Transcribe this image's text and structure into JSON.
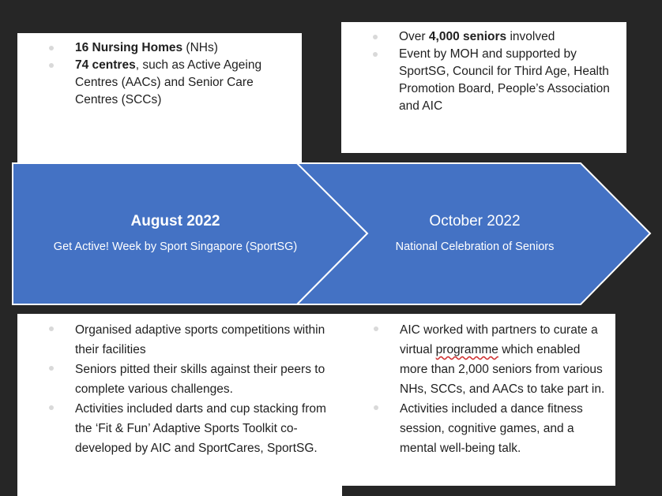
{
  "colors": {
    "background": "#262626",
    "arrow_fill": "#4472c4",
    "arrow_stroke": "#ffffff",
    "box": "#ffffff"
  },
  "top_left": {
    "items": [
      {
        "bold": "16 Nursing Homes",
        "rest": " (NHs)"
      },
      {
        "bold": "74 centres",
        "rest": ", such as Active Ageing Centres (AACs) and Senior Care Centres (SCCs)"
      }
    ]
  },
  "top_right": {
    "items": [
      {
        "pre": "Over ",
        "bold": "4,000 seniors",
        "rest": " involved"
      },
      {
        "pre": "",
        "bold": "",
        "rest": "Event by MOH and supported by SportSG, Council for Third Age, Health Promotion Board, People’s Association and AIC"
      }
    ]
  },
  "arrow_1": {
    "title": "August 2022",
    "subtitle": "Get Active! Week by Sport Singapore (SportSG)"
  },
  "arrow_2": {
    "title": "October 2022",
    "subtitle": "National Celebration of Seniors"
  },
  "bottom_left": {
    "items": [
      "Organised adaptive sports competitions within their facilities",
      "Seniors pitted their skills against their peers to complete various challenges.",
      "Activities included darts and cup stacking from the ‘Fit & Fun’ Adaptive Sports Toolkit co-developed by AIC and SportCares, SportSG."
    ]
  },
  "bottom_right": {
    "items": [
      {
        "pre": "AIC worked with partners to curate a virtual ",
        "wavy": "programme",
        "rest": " which enabled more than 2,000 seniors from various NHs, SCCs, and AACs to take part in."
      },
      {
        "pre": "Activities included a dance fitness session, cognitive games, and a mental well-being talk.",
        "wavy": "",
        "rest": ""
      }
    ]
  }
}
